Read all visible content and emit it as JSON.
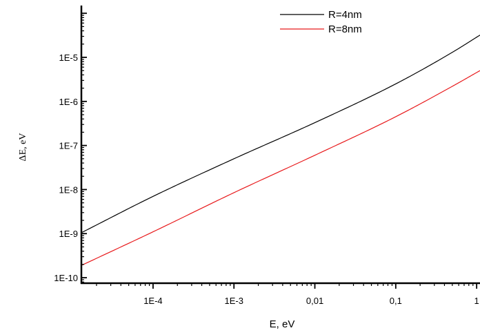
{
  "chart_data": {
    "type": "line",
    "xlabel": "E, eV",
    "ylabel": "ΔE, eV",
    "x_scale": "log",
    "y_scale": "log",
    "xlim": [
      1.3e-05,
      1.1
    ],
    "ylim": [
      7.5e-11,
      0.00015
    ],
    "x_ticks": [
      {
        "value": 0.0001,
        "label": "1E-4"
      },
      {
        "value": 0.001,
        "label": "1E-3"
      },
      {
        "value": 0.01,
        "label": "0,01"
      },
      {
        "value": 0.1,
        "label": "0,1"
      },
      {
        "value": 1,
        "label": "1"
      }
    ],
    "y_ticks": [
      {
        "value": 1e-10,
        "label": "1E-10"
      },
      {
        "value": 1e-09,
        "label": "1E-9"
      },
      {
        "value": 1e-08,
        "label": "1E-8"
      },
      {
        "value": 1e-07,
        "label": "1E-7"
      },
      {
        "value": 1e-06,
        "label": "1E-6"
      },
      {
        "value": 1e-05,
        "label": "1E-5"
      }
    ],
    "grid": false,
    "legend_position": "top-right",
    "series": [
      {
        "name": "R=4nm",
        "color": "#000000",
        "x": [
          1.3e-05,
          0.0001,
          0.001,
          0.01,
          0.1,
          0.5,
          1.1
        ],
        "y": [
          1.05e-09,
          7e-09,
          5e-08,
          3.3e-07,
          2.5e-06,
          1.3e-05,
          3.2e-05
        ]
      },
      {
        "name": "R=8nm",
        "color": "#e8191b",
        "x": [
          1.3e-05,
          0.0001,
          0.001,
          0.01,
          0.1,
          0.5,
          1.1
        ],
        "y": [
          1.9e-10,
          1.1e-09,
          8.5e-09,
          6e-08,
          4.5e-07,
          2.2e-06,
          5e-06
        ]
      }
    ]
  }
}
